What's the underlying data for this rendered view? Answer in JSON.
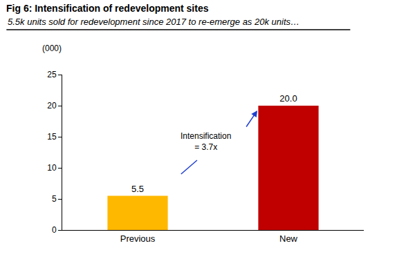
{
  "chart_data": {
    "type": "bar",
    "title": "Fig 6: Intensification of redevelopment sites",
    "subtitle": "5.5k units sold for redevelopment since 2017 to re-emerge as 20k units…",
    "y_label": "(000)",
    "annotation": "Intensification\n= 3.7x",
    "categories": [
      "Previous",
      "New"
    ],
    "values": [
      5.5,
      20.0
    ],
    "value_labels": [
      "5.5",
      "20.0"
    ],
    "colors": [
      "#FFB800",
      "#C00000"
    ],
    "data_labels": true,
    "ylim": [
      0,
      25
    ],
    "yticks": [
      0,
      5,
      10,
      15,
      20,
      25
    ],
    "grid": false
  }
}
